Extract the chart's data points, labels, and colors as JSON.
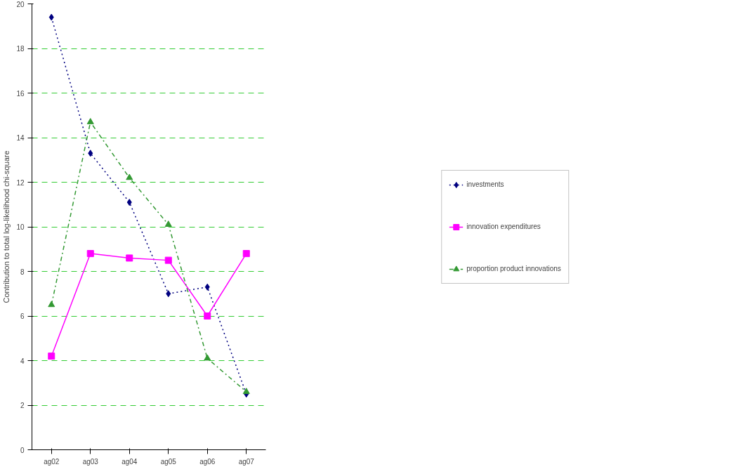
{
  "chart_data": {
    "type": "line",
    "ylabel": "Contribution to total log-likelihood chi-square",
    "categories": [
      "ag02",
      "ag03",
      "ag04",
      "ag05",
      "ag06",
      "ag07"
    ],
    "series": [
      {
        "name": "investments",
        "color": "#000080",
        "marker": "diamond",
        "line_style": "dotted",
        "values": [
          19.4,
          13.3,
          11.1,
          7.0,
          7.3,
          2.5
        ]
      },
      {
        "name": "innovation expenditures",
        "color": "#ff00ff",
        "marker": "square",
        "line_style": "solid",
        "values": [
          4.2,
          8.8,
          8.6,
          8.5,
          6.0,
          8.8
        ]
      },
      {
        "name": "proportion product innovations",
        "color": "#339933",
        "marker": "triangle",
        "line_style": "dashed",
        "values": [
          6.5,
          14.7,
          12.2,
          10.1,
          4.1,
          2.6
        ]
      }
    ],
    "ylim": [
      0,
      20
    ],
    "yticks": [
      0,
      2,
      4,
      6,
      8,
      10,
      12,
      14,
      16,
      18,
      20
    ],
    "grid": "y",
    "legend": "right"
  }
}
